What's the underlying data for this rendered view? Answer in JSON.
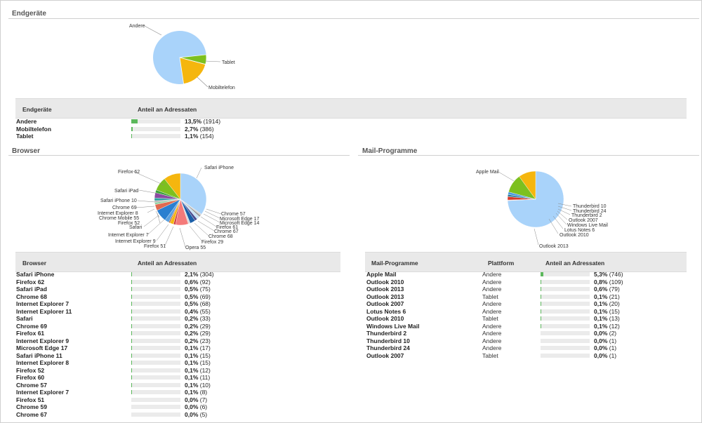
{
  "colors": {
    "blue": "#a9d3fa",
    "orange": "#f5b60e",
    "green": "#7dc01f",
    "bar": "#5cb85c"
  },
  "endgeraete": {
    "title": "Endgeräte",
    "headers": {
      "name": "Endgeräte",
      "share": "Anteil an Adressaten"
    },
    "rows": [
      {
        "name": "Andere",
        "pct_text": "13,5%",
        "count": "(1914)",
        "share": 0.135
      },
      {
        "name": "Mobiltelefon",
        "pct_text": "2,7%",
        "count": "(386)",
        "share": 0.027
      },
      {
        "name": "Tablet",
        "pct_text": "1,1%",
        "count": "(154)",
        "share": 0.011
      }
    ],
    "pie_labels": [
      "Andere",
      "Tablet",
      "Mobiltelefon"
    ]
  },
  "browser": {
    "title": "Browser",
    "headers": {
      "name": "Browser",
      "share": "Anteil an Adressaten"
    },
    "rows": [
      {
        "name": "Safari iPhone",
        "pct_text": "2,1%",
        "count": "(304)",
        "share": 0.021
      },
      {
        "name": "Firefox 62",
        "pct_text": "0,6%",
        "count": "(92)",
        "share": 0.006
      },
      {
        "name": "Safari iPad",
        "pct_text": "0,5%",
        "count": "(75)",
        "share": 0.005
      },
      {
        "name": "Chrome 68",
        "pct_text": "0,5%",
        "count": "(69)",
        "share": 0.005
      },
      {
        "name": "Internet Explorer 7",
        "pct_text": "0,5%",
        "count": "(68)",
        "share": 0.005
      },
      {
        "name": "Internet Explorer 11",
        "pct_text": "0,4%",
        "count": "(55)",
        "share": 0.004
      },
      {
        "name": "Safari",
        "pct_text": "0,2%",
        "count": "(33)",
        "share": 0.002
      },
      {
        "name": "Chrome 69",
        "pct_text": "0,2%",
        "count": "(29)",
        "share": 0.002
      },
      {
        "name": "Firefox 61",
        "pct_text": "0,2%",
        "count": "(29)",
        "share": 0.002
      },
      {
        "name": "Internet Explorer 9",
        "pct_text": "0,2%",
        "count": "(23)",
        "share": 0.002
      },
      {
        "name": "Microsoft Edge 17",
        "pct_text": "0,1%",
        "count": "(17)",
        "share": 0.001
      },
      {
        "name": "Safari iPhone 11",
        "pct_text": "0,1%",
        "count": "(15)",
        "share": 0.001
      },
      {
        "name": "Internet Explorer 8",
        "pct_text": "0,1%",
        "count": "(15)",
        "share": 0.001
      },
      {
        "name": "Firefox 52",
        "pct_text": "0,1%",
        "count": "(12)",
        "share": 0.001
      },
      {
        "name": "Firefox 60",
        "pct_text": "0,1%",
        "count": "(11)",
        "share": 0.001
      },
      {
        "name": "Chrome 57",
        "pct_text": "0,1%",
        "count": "(10)",
        "share": 0.001
      },
      {
        "name": "Internet Explorer 7",
        "pct_text": "0,1%",
        "count": "(8)",
        "share": 0.001
      },
      {
        "name": "Firefox 51",
        "pct_text": "0,0%",
        "count": "(7)",
        "share": 0.0
      },
      {
        "name": "Chrome 59",
        "pct_text": "0,0%",
        "count": "(6)",
        "share": 0.0
      },
      {
        "name": "Chrome 67",
        "pct_text": "0,0%",
        "count": "(5)",
        "share": 0.0
      }
    ],
    "pie_labels": [
      "Firefox 62",
      "Safari iPhone",
      "Safari iPad",
      "Safari iPhone 10",
      "Chrome 69",
      "Internet Explorer 8",
      "Chrome Mobile 55",
      "Firefox 52",
      "Safari",
      "Internet Explorer 7",
      "Internet Explorer 9",
      "Firefox 51",
      "Opera 55",
      "Firefox 29",
      "Chrome 68",
      "Chrome 67",
      "Firefox 61",
      "Microsoft Edge 14",
      "Microsoft Edge 17",
      "Chrome 57"
    ]
  },
  "mail": {
    "title": "Mail-Programme",
    "headers": {
      "name": "Mail-Programme",
      "platform": "Plattform",
      "share": "Anteil an Adressaten"
    },
    "rows": [
      {
        "name": "Apple Mail",
        "platform": "Andere",
        "pct_text": "5,3%",
        "count": "(746)",
        "share": 0.053
      },
      {
        "name": "Outlook 2010",
        "platform": "Andere",
        "pct_text": "0,8%",
        "count": "(109)",
        "share": 0.008
      },
      {
        "name": "Outlook 2013",
        "platform": "Andere",
        "pct_text": "0,6%",
        "count": "(79)",
        "share": 0.006
      },
      {
        "name": "Outlook 2013",
        "platform": "Tablet",
        "pct_text": "0,1%",
        "count": "(21)",
        "share": 0.001
      },
      {
        "name": "Outlook 2007",
        "platform": "Andere",
        "pct_text": "0,1%",
        "count": "(20)",
        "share": 0.001
      },
      {
        "name": "Lotus Notes 6",
        "platform": "Andere",
        "pct_text": "0,1%",
        "count": "(15)",
        "share": 0.001
      },
      {
        "name": "Outlook 2010",
        "platform": "Tablet",
        "pct_text": "0,1%",
        "count": "(13)",
        "share": 0.001
      },
      {
        "name": "Windows Live Mail",
        "platform": "Andere",
        "pct_text": "0,1%",
        "count": "(12)",
        "share": 0.001
      },
      {
        "name": "Thunderbird 2",
        "platform": "Andere",
        "pct_text": "0,0%",
        "count": "(2)",
        "share": 0.0
      },
      {
        "name": "Thunderbird 10",
        "platform": "Andere",
        "pct_text": "0,0%",
        "count": "(1)",
        "share": 0.0
      },
      {
        "name": "Thunderbird 24",
        "platform": "Andere",
        "pct_text": "0,0%",
        "count": "(1)",
        "share": 0.0
      },
      {
        "name": "Outlook 2007",
        "platform": "Tablet",
        "pct_text": "0,0%",
        "count": "(1)",
        "share": 0.0
      }
    ],
    "pie_labels": [
      "Apple Mail",
      "Thunderbird 10",
      "Thunderbird 24",
      "Thunderbird 2",
      "Outlook 2007",
      "Windows Live Mail",
      "Lotus Notes 6",
      "Outlook 2010",
      "Outlook 2013"
    ]
  }
}
